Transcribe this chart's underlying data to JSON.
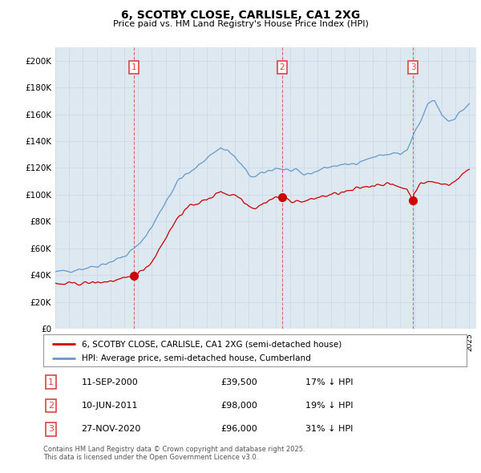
{
  "title": "6, SCOTBY CLOSE, CARLISLE, CA1 2XG",
  "subtitle": "Price paid vs. HM Land Registry's House Price Index (HPI)",
  "xlim_start": 1995,
  "xlim_end": 2025.5,
  "ylim": [
    0,
    210000
  ],
  "yticks": [
    0,
    20000,
    40000,
    60000,
    80000,
    100000,
    120000,
    140000,
    160000,
    180000,
    200000
  ],
  "ytick_labels": [
    "£0",
    "£20K",
    "£40K",
    "£60K",
    "£80K",
    "£100K",
    "£120K",
    "£140K",
    "£160K",
    "£180K",
    "£200K"
  ],
  "hpi_color": "#6699cc",
  "price_color": "#cc0000",
  "vline_color": "#dd4444",
  "grid_color": "#c8d8e8",
  "plot_bg_color": "#dde8f0",
  "background_color": "#ffffff",
  "legend_label_price": "6, SCOTBY CLOSE, CARLISLE, CA1 2XG (semi-detached house)",
  "legend_label_hpi": "HPI: Average price, semi-detached house, Cumberland",
  "sales": [
    {
      "date": 2000.71,
      "price": 39500,
      "label": "1",
      "year_label": "11-SEP-2000",
      "price_label": "£39,500",
      "hpi_label": "17% ↓ HPI"
    },
    {
      "date": 2011.44,
      "price": 98000,
      "label": "2",
      "year_label": "10-JUN-2011",
      "price_label": "£98,000",
      "hpi_label": "19% ↓ HPI"
    },
    {
      "date": 2020.91,
      "price": 96000,
      "label": "3",
      "year_label": "27-NOV-2020",
      "price_label": "£96,000",
      "hpi_label": "31% ↓ HPI"
    }
  ],
  "footnote": "Contains HM Land Registry data © Crown copyright and database right 2025.\nThis data is licensed under the Open Government Licence v3.0."
}
